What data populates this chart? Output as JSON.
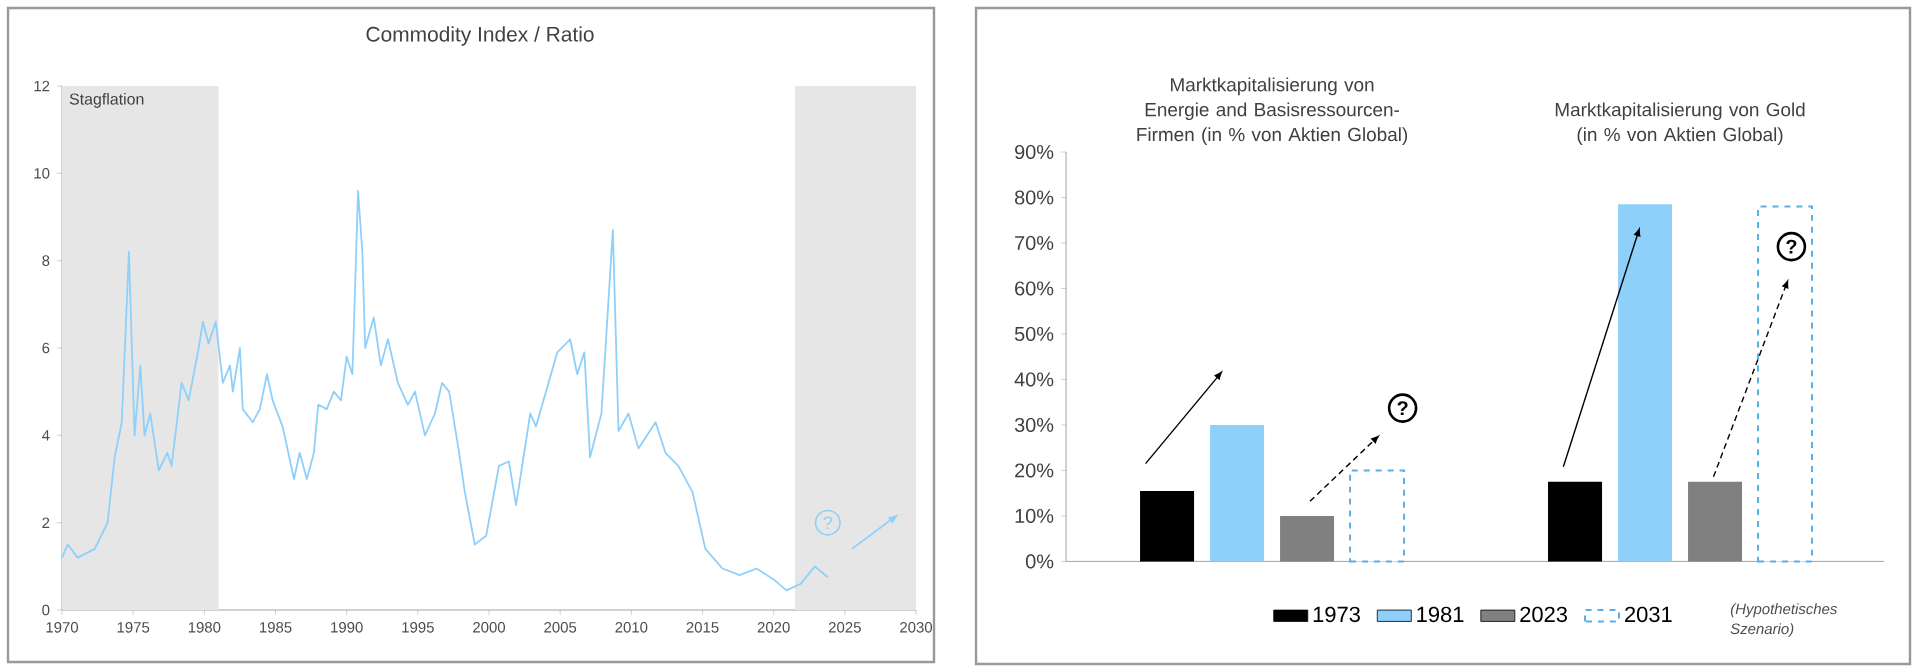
{
  "chart_data": [
    {
      "type": "line",
      "title": "Commodity Index / Ratio",
      "color": "#8fd0fb",
      "x": [
        1970,
        1970.4,
        1971.1,
        1972.3,
        1973.2,
        1973.7,
        1974.2,
        1974.7,
        1975.1,
        1975.5,
        1975.8,
        1976.2,
        1976.8,
        1977.4,
        1977.7,
        1978.4,
        1978.9,
        1979.6,
        1979.9,
        1980.3,
        1980.8,
        1981.3,
        1981.8,
        1982,
        1982.5,
        1982.7,
        1983.4,
        1983.9,
        1984.4,
        1984.8,
        1985.5,
        1986.3,
        1986.7,
        1987.2,
        1987.7,
        1988,
        1988.6,
        1989.1,
        1989.6,
        1990,
        1990.4,
        1990.8,
        1991.1,
        1991.3,
        1991.9,
        1992.4,
        1992.9,
        1993.6,
        1994.3,
        1994.8,
        1995.5,
        1996.2,
        1996.7,
        1997.2,
        1997.9,
        1998.3,
        1999,
        1999.8,
        2000.7,
        2001.4,
        2001.9,
        2002.9,
        2003.3,
        2004.8,
        2005.7,
        2006.2,
        2006.7,
        2007.1,
        2007.9,
        2008.7,
        2009.1,
        2009.8,
        2010.5,
        2011.7,
        2012.4,
        2013.3,
        2014.3,
        2015.2,
        2016.4,
        2017.6,
        2018.8,
        2020,
        2020.9,
        2021.9,
        2022.9,
        2023.8
      ],
      "values": [
        1.2,
        1.5,
        1.2,
        1.4,
        2.0,
        3.5,
        4.3,
        8.2,
        4.0,
        5.6,
        4.0,
        4.5,
        3.2,
        3.6,
        3.3,
        5.2,
        4.8,
        6.0,
        6.6,
        6.1,
        6.6,
        5.2,
        5.6,
        5.0,
        6.0,
        4.6,
        4.3,
        4.6,
        5.4,
        4.8,
        4.2,
        3.0,
        3.6,
        3.0,
        3.6,
        4.7,
        4.6,
        5.0,
        4.8,
        5.8,
        5.4,
        9.6,
        8.2,
        6.0,
        6.7,
        5.6,
        6.2,
        5.2,
        4.7,
        5.0,
        4.0,
        4.5,
        5.2,
        5.0,
        3.6,
        2.7,
        1.5,
        1.7,
        3.3,
        3.4,
        2.4,
        4.5,
        4.2,
        5.9,
        6.2,
        5.4,
        5.9,
        3.5,
        4.5,
        8.7,
        4.1,
        4.5,
        3.7,
        4.3,
        3.6,
        3.3,
        2.7,
        1.4,
        0.95,
        0.8,
        0.95,
        0.7,
        0.45,
        0.6,
        1.0,
        0.75
      ],
      "xlim": [
        1970,
        2030
      ],
      "xticks": [
        1970,
        1975,
        1980,
        1985,
        1990,
        1995,
        2000,
        2005,
        2010,
        2015,
        2020,
        2025,
        2030
      ],
      "ylim": [
        0,
        12
      ],
      "yticks": [
        0,
        2,
        4,
        6,
        8,
        10,
        12
      ],
      "bands": [
        {
          "axis": "x",
          "from": 1970,
          "to": 1981,
          "label": "Stagflation",
          "color": "#e6e6e6"
        },
        {
          "axis": "x",
          "from": 2021.5,
          "to": 2030,
          "color": "#e6e6e6"
        }
      ],
      "annotations": [
        {
          "text": "?",
          "x": 2023.8,
          "y": 2.0
        }
      ]
    },
    {
      "type": "bar",
      "categories": [
        "Marktkapitalisierung von Energie and Basisressourcen-Firmen (in % von Aktien Global)",
        "Marktkapitalisierung von Gold (in % von Aktien Global)"
      ],
      "series": [
        {
          "name": "1973",
          "color": "#000000",
          "values": [
            15.5,
            17.5
          ]
        },
        {
          "name": "1981",
          "color": "#8fd0fb",
          "values": [
            30,
            78.5
          ]
        },
        {
          "name": "2023",
          "color": "#808080",
          "values": [
            10,
            17.5
          ]
        },
        {
          "name": "2031",
          "color": "#5aaee8",
          "line_style": "dashed",
          "values": [
            20,
            78
          ]
        }
      ],
      "ylim": [
        0,
        90
      ],
      "yticks": [
        {
          "value": 0,
          "label": "0%"
        },
        {
          "value": 10,
          "label": "10%"
        },
        {
          "value": 20,
          "label": "20%"
        },
        {
          "value": 30,
          "label": "30%"
        },
        {
          "value": 40,
          "label": "40%"
        },
        {
          "value": 50,
          "label": "50%"
        },
        {
          "value": 60,
          "label": "60%"
        },
        {
          "value": 70,
          "label": "70%"
        },
        {
          "value": 80,
          "label": "80%"
        },
        {
          "value": 90,
          "label": "90%"
        }
      ],
      "legend": "bottom",
      "annotations": [
        "?",
        "?",
        "(Hypothetisches Szenario)"
      ]
    }
  ]
}
